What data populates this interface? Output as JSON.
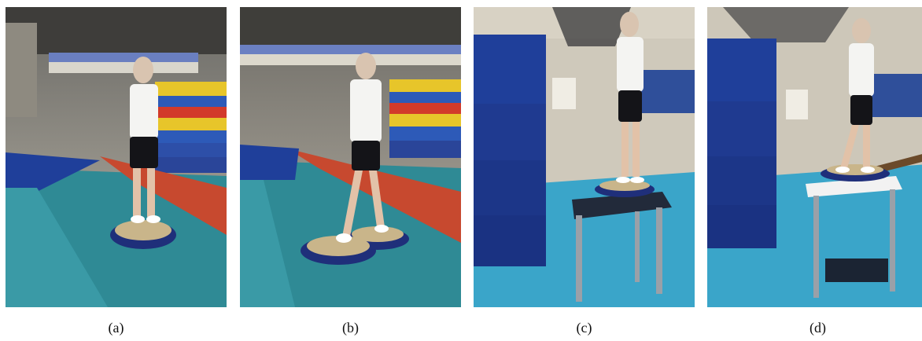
{
  "figure": {
    "panels": [
      {
        "id": "a",
        "caption": "(a)"
      },
      {
        "id": "b",
        "caption": "(b)"
      },
      {
        "id": "c",
        "caption": "(c)"
      },
      {
        "id": "d",
        "caption": "(d)"
      }
    ]
  },
  "colors": {
    "floor_teal": "#2f8a95",
    "runway_red": "#c7492f",
    "mat_blue": "#1f3f9a",
    "gym_floor_light": "#3aa5c9",
    "box_dark": "#222a3a"
  }
}
